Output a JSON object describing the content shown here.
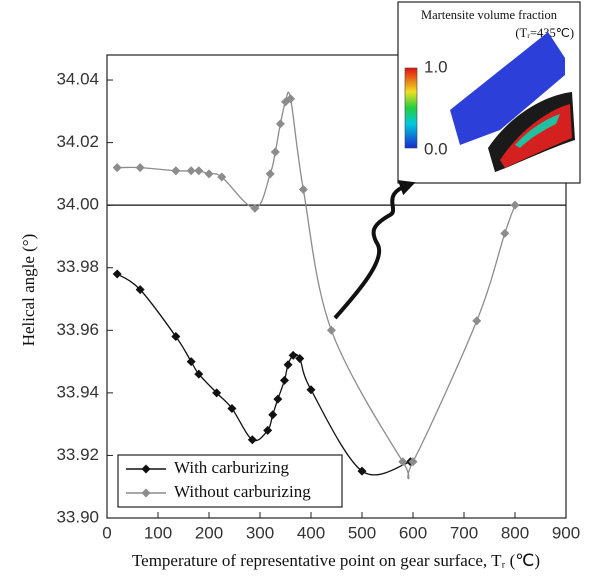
{
  "chart_data": {
    "type": "line",
    "xlabel": "Temperature of representative point on gear surface, Tᵣ (℃)",
    "ylabel": "Helical angle (°)",
    "xlim": [
      0,
      900
    ],
    "xticks": [
      0,
      100,
      200,
      300,
      400,
      500,
      600,
      700,
      800,
      900
    ],
    "ylim": [
      33.9,
      34.048
    ],
    "yticks": [
      {
        "value": 33.9,
        "label": "33.90"
      },
      33.92,
      33.94,
      33.96,
      33.98,
      {
        "value": 34.0,
        "label": "34.00"
      },
      34.02,
      34.04
    ],
    "hline": 34.0,
    "legend": "lower left",
    "series": [
      {
        "name": "With carburizing",
        "color": "#111111",
        "x": [
          20,
          65,
          135,
          165,
          180,
          215,
          245,
          285,
          315,
          325,
          335,
          348,
          355,
          365,
          378,
          400,
          500,
          595
        ],
        "values": [
          33.978,
          33.973,
          33.958,
          33.95,
          33.946,
          33.94,
          33.935,
          33.925,
          33.928,
          33.933,
          33.938,
          33.944,
          33.949,
          33.952,
          33.951,
          33.941,
          33.915,
          33.918
        ]
      },
      {
        "name": "Without carburizing",
        "color": "#8c8c8c",
        "x": [
          20,
          65,
          135,
          165,
          180,
          200,
          225,
          290,
          320,
          330,
          340,
          350,
          360,
          385,
          440,
          580,
          600,
          725,
          780,
          800
        ],
        "values": [
          34.012,
          34.012,
          34.011,
          34.011,
          34.011,
          34.01,
          34.009,
          33.999,
          34.01,
          34.017,
          34.026,
          34.033,
          34.034,
          34.005,
          33.96,
          33.918,
          33.918,
          33.963,
          33.991,
          34.0
        ]
      }
    ],
    "inset": {
      "title": "Martensite volume fraction",
      "subtitle": "(Tᵣ=435℃)",
      "scale_max": "1.0",
      "scale_min": "0.0"
    }
  }
}
